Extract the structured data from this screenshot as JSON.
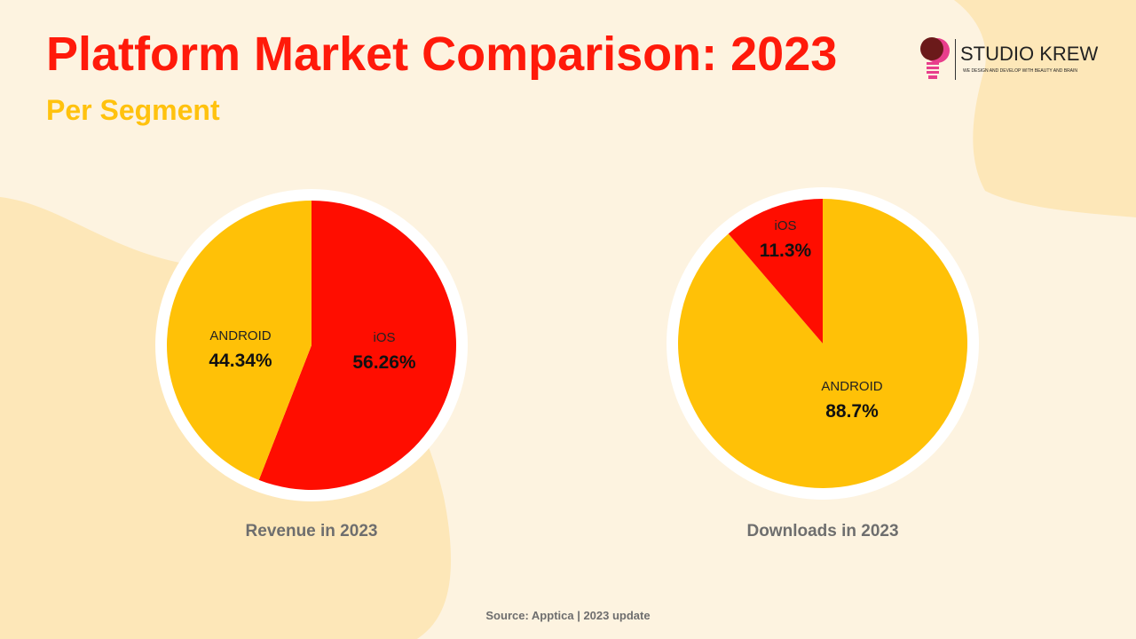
{
  "header": {
    "title": "Platform Market Comparison: 2023",
    "subtitle": "Per Segment"
  },
  "logo": {
    "name": "STUDIO KREW",
    "tagline": "WE DESIGN AND DEVELOP WITH BEAUTY AND BRAIN"
  },
  "colors": {
    "ios": "#ff0d00",
    "android": "#ffc107",
    "title": "#ff1a0a",
    "subtitle": "#ffc20e",
    "background": "#fdf3e0",
    "blob": "#fde7b8"
  },
  "chart_data": [
    {
      "type": "pie",
      "title": "Revenue in 2023",
      "slices": [
        {
          "label": "iOS",
          "value": 56.26,
          "display": "56.26%"
        },
        {
          "label": "ANDROID",
          "value": 44.34,
          "display": "44.34%"
        }
      ]
    },
    {
      "type": "pie",
      "title": "Downloads in 2023",
      "slices": [
        {
          "label": "ANDROID",
          "value": 88.7,
          "display": "88.7%"
        },
        {
          "label": "iOS",
          "value": 11.3,
          "display": "11.3%"
        }
      ]
    }
  ],
  "footer": {
    "source": "Source: Apptica | 2023 update"
  }
}
